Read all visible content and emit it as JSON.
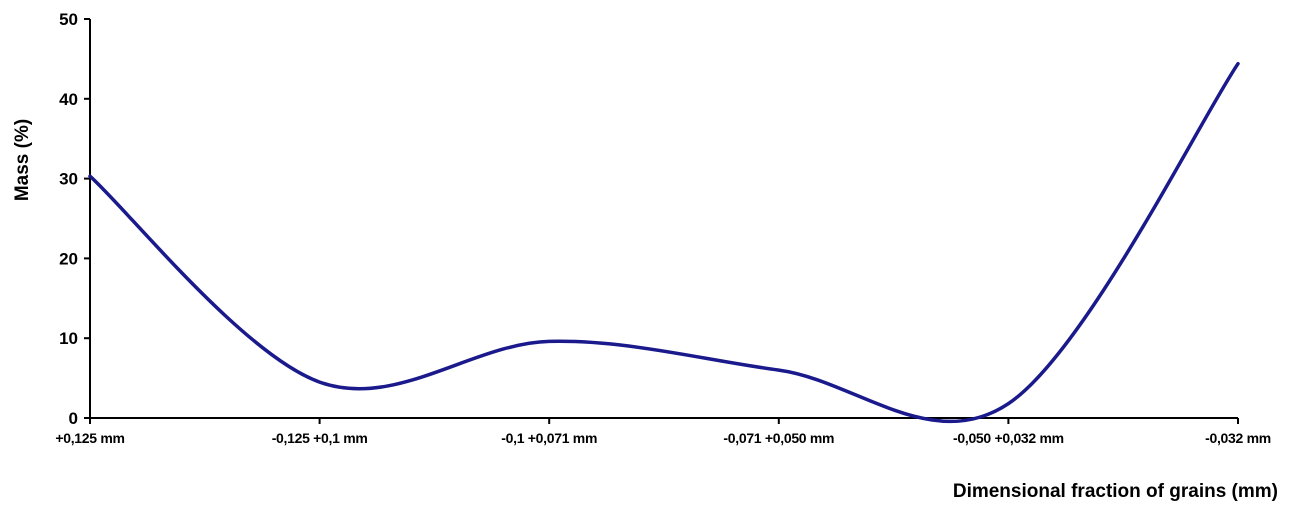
{
  "chart_data": {
    "type": "line",
    "title": "",
    "xlabel": "Dimensional fraction of grains (mm)",
    "ylabel": "Mass (%)",
    "ylim": [
      0,
      50
    ],
    "yticks": [
      0,
      10,
      20,
      30,
      40,
      50
    ],
    "categories": [
      "+0,125 mm",
      "-0,125 +0,1 mm",
      "-0,1 +0,071 mm",
      "-0,071 +0,050 mm",
      "-0,050 +0,032 mm",
      "-0,032 mm"
    ],
    "series": [
      {
        "color": "#1a1a8c",
        "smooth": true,
        "x": [
          0,
          1,
          2,
          3,
          4,
          5
        ],
        "values": [
          30.3,
          4.5,
          9.6,
          6.0,
          1.8,
          44.4
        ]
      }
    ],
    "grid": false,
    "legend": "none"
  }
}
